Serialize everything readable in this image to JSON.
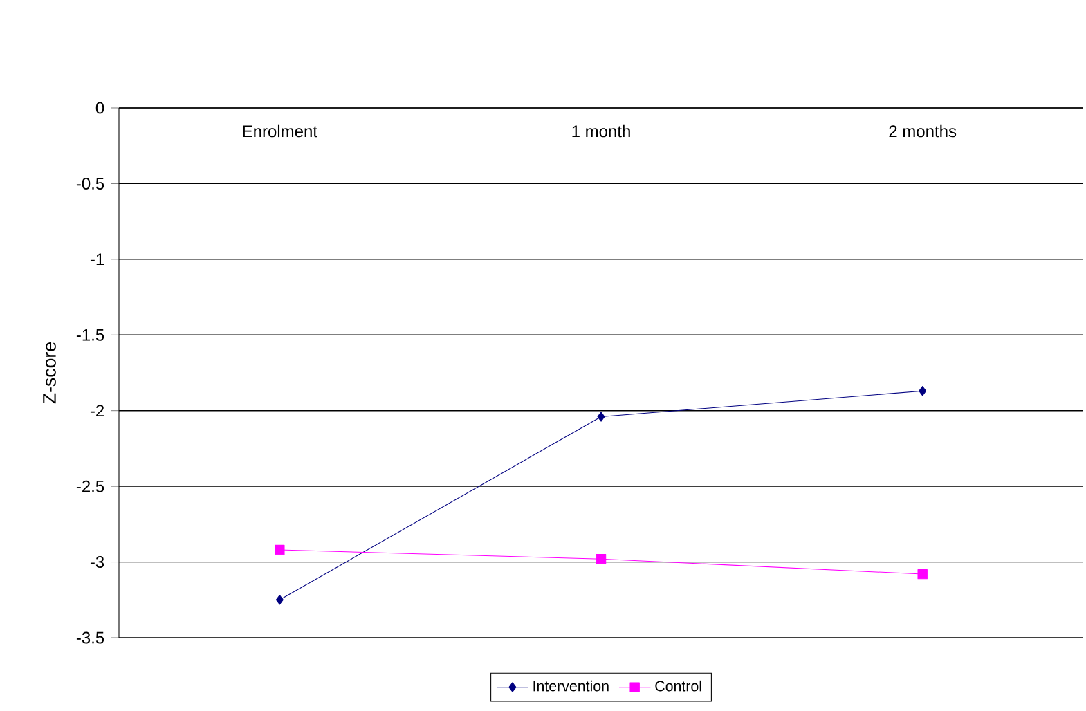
{
  "chart_data": {
    "type": "line",
    "ylabel": "Z-score",
    "categories": [
      "Enrolment",
      "1 month",
      "2 months"
    ],
    "series": [
      {
        "name": "Intervention",
        "color": "#000080",
        "marker": "diamond",
        "values": [
          -3.25,
          -2.04,
          -1.87
        ]
      },
      {
        "name": "Control",
        "color": "#ff00ff",
        "marker": "square",
        "values": [
          -2.92,
          -2.98,
          -3.08
        ]
      }
    ],
    "ylim": [
      -3.5,
      0
    ],
    "yticks": [
      0,
      -0.5,
      -1,
      -1.5,
      -2,
      -2.5,
      -3,
      -3.5
    ],
    "grid": "y",
    "legend": "bottom"
  }
}
